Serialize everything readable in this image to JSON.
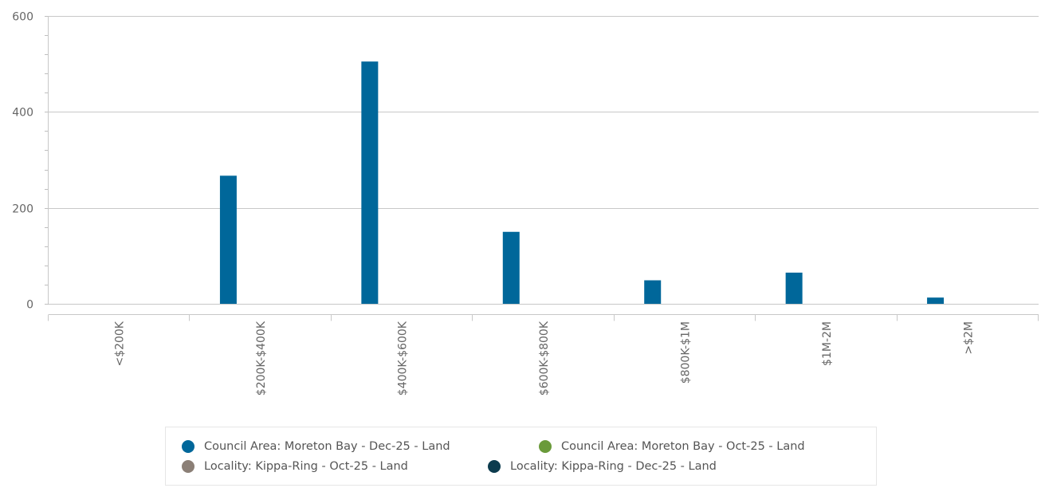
{
  "chart_data": {
    "type": "bar",
    "categories": [
      "<$200K",
      "$200K-$400K",
      "$400K-$600K",
      "$600K-$800K",
      "$800K-$1M",
      "$1M-2M",
      ">$2M"
    ],
    "series": [
      {
        "name": "Council Area: Moreton Bay - Dec-25 - Land",
        "color": "#00679a",
        "values": [
          0,
          267,
          505,
          150,
          49,
          65,
          13
        ]
      },
      {
        "name": "Council Area: Moreton Bay - Oct-25 - Land",
        "color": "#6a9a3a",
        "values": [
          0,
          0,
          0,
          0,
          0,
          0,
          0
        ]
      },
      {
        "name": "Locality: Kippa-Ring - Oct-25 - Land",
        "color": "#8b7f76",
        "values": [
          0,
          0,
          0,
          0,
          0,
          0,
          0
        ]
      },
      {
        "name": "Locality: Kippa-Ring - Dec-25 - Land",
        "color": "#0c3b4e",
        "values": [
          0,
          0,
          0,
          0,
          0,
          0,
          0
        ]
      }
    ],
    "ylim": [
      0,
      600
    ],
    "yticks": [
      0,
      200,
      400,
      600
    ],
    "xlabel": "",
    "ylabel": "",
    "grid": true,
    "legend_position": "bottom"
  }
}
